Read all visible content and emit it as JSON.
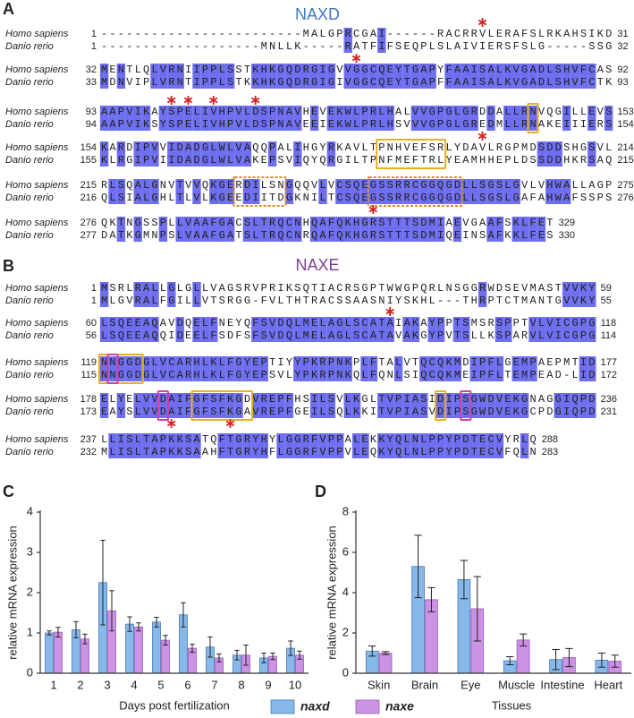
{
  "panel_labels": [
    "A",
    "B",
    "C",
    "D"
  ],
  "highlight_color": "#6e6ef0",
  "alignments": [
    {
      "title": "NAXD",
      "color": "#3f78c0",
      "species": [
        "Homo sapiens",
        "Danio rerio"
      ],
      "blocks": [
        {
          "rows": [
            {
              "start": 1,
              "seq": "------------------------MALGPRCGAI------RACRRVLERAFSLRKAHSIKD",
              "end": 31
            },
            {
              "start": 1,
              "seq": "-------------------MNLLK-----RATFIFSEQPLSLAIVIERSFSLG-----SSG",
              "end": 32
            }
          ]
        },
        {
          "rows": [
            {
              "start": 32,
              "seq": "MENTLQLVRNIIPPLSSTKHKGQDRGIGVVGGCQEYTGAPYFAAISALKVGADLSHVFCAS",
              "end": 92
            },
            {
              "start": 33,
              "seq": "MDNVIPLVRNTIPPLSTKKHKGQDRGIGIVGGCQEYTGAPFFAAISALKVGADLSHVFCTK",
              "end": 93
            }
          ]
        },
        {
          "rows": [
            {
              "start": 93,
              "seq": "AAPVIKAYSPELIVHPVLDSPNAVHEVEKWLPRLHALVVGPGLGRDDALLRNVQGILLEVS",
              "end": 153
            },
            {
              "start": 94,
              "seq": "AAPVIKSYSPELIVHPVLDSPNAVEEIEKWLPRLHSVVVGPGLGREDMLLRNAKEIIIERS",
              "end": 154
            }
          ]
        },
        {
          "rows": [
            {
              "start": 154,
              "seq": "KARDIPVVIDADGLWLVAQQPALIHGYRKAVLTPNHVEFSRLYDAVLRGPMDSDDSHGSVL",
              "end": 214
            },
            {
              "start": 155,
              "seq": "KLRGIPVIIDADGLWLVAKEPSVIQYQRGILTPNFMEFTRLYEAMHHEPLDSSDDHKRSAQ",
              "end": 215
            }
          ]
        },
        {
          "rows": [
            {
              "start": 215,
              "seq": "RLSQALGNVTVVQKGERDILSNGQQVLVCSQEGSSRRCGGQGDLLSGSLGVLVHWALLAGP",
              "end": 275
            },
            {
              "start": 216,
              "seq": "QLSIALGHLTLVLKGEEDIITDGKNILTCSQEGSSRRCGGQGDLLSGSLGAFAHWAFSSPS",
              "end": 276
            }
          ]
        },
        {
          "rows": [
            {
              "start": 276,
              "seq": "QKTNGSSPLLVAAFGACSLTRQCNHQAFQKHGRSTTTSDMIAEVGAAFSKLFET",
              "end": 329
            },
            {
              "start": 277,
              "seq": "DATKGMNPSLVAAFGATSLTRQCNRQAFQKHGRSTTTSDMIQEINSAFKKLFES",
              "end": 330
            }
          ]
        }
      ]
    },
    {
      "title": "NAXE",
      "color": "#7b3f8f",
      "species": [
        "Homo sapiens",
        "Danio rerio"
      ],
      "blocks": [
        {
          "rows": [
            {
              "start": 1,
              "seq": "MSRLRALLGLGLLVAGSRVPRIKSQTIACRSGPTWWGPQRLNSGGRWDSEVMASTVVKY",
              "end": 59
            },
            {
              "start": 1,
              "seq": "MLGVRALFGILLVTSRGG-FVLTHTRACSSAASNIYSKHL---THRPTCTMANTGVVKY",
              "end": 55
            }
          ]
        },
        {
          "rows": [
            {
              "start": 60,
              "seq": "LSQEEAQAVDQELFNEYQFSVDQLMELAGLSCATAIAKAYPPTSMSRSPPTVLVICGPG",
              "end": 118
            },
            {
              "start": 56,
              "seq": "LSQEEAQQIDEELFSDFSFSVDQLMELAGLSCATAVAKGYPVTSLLKSPARVLVICGPG",
              "end": 114
            }
          ]
        },
        {
          "rows": [
            {
              "start": 119,
              "seq": "NNGGDGLVCARHLKLFGYEPTIYYPKRPNKPLFTALVTQCQKMDIPFLGEMPAEPMTID",
              "end": 177
            },
            {
              "start": 115,
              "seq": "NNGGDGLVCARHLKLFGYEPSVLYPKRPNKQLFQNLSIQCQKMEIPFLTEMPEAD-LID",
              "end": 172
            }
          ]
        },
        {
          "rows": [
            {
              "start": 178,
              "seq": "ELYELVVDAIFGFSFKGDVREPFHSILSVLKGLTVPIASIDIPSGWDVEKGNAGGIQPD",
              "end": 236
            },
            {
              "start": 173,
              "seq": "EAYSLVVDAIFGFSFKGAVREPFGEILSQLKKITVPIASVDIPSGWDVEKGCPDGIQPD",
              "end": 231
            }
          ]
        },
        {
          "rows": [
            {
              "start": 237,
              "seq": "LLISLTAPKKSATQFTGRYHYLGGRFVPPALEKKYQLNLPPYPDTECVYRLQ",
              "end": 288
            },
            {
              "start": 232,
              "seq": "MLISLTAPKKSAAHFTGRYHFLGGRFVPPVLEQKYQLNLPPYPDTECVFQLN",
              "end": 283
            }
          ]
        }
      ]
    }
  ],
  "chart_data": [
    {
      "type": "bar",
      "y_label": "relative mRNA expression",
      "x_label": "Days post fertilization",
      "categories": [
        "1",
        "2",
        "3",
        "4",
        "5",
        "6",
        "7",
        "8",
        "9",
        "10"
      ],
      "ylim": [
        0,
        4
      ],
      "yticks": [
        0,
        1,
        2,
        3,
        4
      ],
      "series": [
        {
          "name": "naxd",
          "color": "#86b8ea",
          "values": [
            1.0,
            1.08,
            2.25,
            1.22,
            1.27,
            1.45,
            0.65,
            0.45,
            0.38,
            0.62
          ],
          "errors": [
            0.05,
            0.2,
            1.05,
            0.18,
            0.12,
            0.3,
            0.25,
            0.12,
            0.12,
            0.18
          ]
        },
        {
          "name": "naxe",
          "color": "#cc92e4",
          "values": [
            1.02,
            0.85,
            1.55,
            1.15,
            0.82,
            0.62,
            0.38,
            0.45,
            0.42,
            0.45
          ],
          "errors": [
            0.12,
            0.12,
            0.5,
            0.1,
            0.12,
            0.1,
            0.1,
            0.25,
            0.08,
            0.1
          ]
        }
      ]
    },
    {
      "type": "bar",
      "y_label": "relative mRNA expression",
      "x_label": "Tissues",
      "categories": [
        "Skin",
        "Brain",
        "Eye",
        "Muscle",
        "Intestine",
        "Heart"
      ],
      "ylim": [
        0,
        8
      ],
      "yticks": [
        0,
        2,
        4,
        6,
        8
      ],
      "series": [
        {
          "name": "naxd",
          "color": "#86b8ea",
          "values": [
            1.1,
            5.3,
            4.65,
            0.62,
            0.68,
            0.65
          ],
          "errors": [
            0.25,
            1.55,
            0.95,
            0.2,
            0.5,
            0.35
          ]
        },
        {
          "name": "naxe",
          "color": "#cc92e4",
          "values": [
            1.0,
            3.65,
            3.2,
            1.65,
            0.78,
            0.6
          ],
          "errors": [
            0.07,
            0.6,
            1.6,
            0.3,
            0.45,
            0.3
          ]
        }
      ]
    }
  ]
}
